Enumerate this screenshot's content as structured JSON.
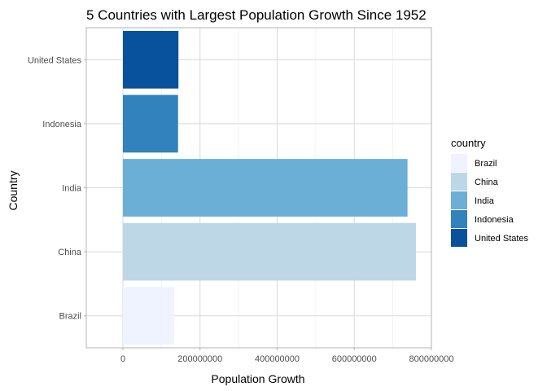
{
  "chart_data": {
    "type": "bar",
    "orientation": "horizontal",
    "title": "5 Countries with Largest Population Growth Since 1952",
    "xlabel": "Population Growth",
    "ylabel": "Country",
    "categories": [
      "Brazil",
      "China",
      "India",
      "Indonesia",
      "United States"
    ],
    "values": [
      133000000,
      760000000,
      738000000,
      143000000,
      144000000
    ],
    "colors": [
      "#EFF3FF",
      "#BDD7E7",
      "#6BAED6",
      "#3182BD",
      "#08519C"
    ],
    "xlim": [
      -95000000,
      800000000
    ],
    "xticks": [
      0,
      200000000,
      400000000,
      600000000,
      800000000
    ],
    "xtick_labels": [
      "0",
      "200000000",
      "400000000",
      "600000000",
      "800000000"
    ],
    "grid": true,
    "legend": {
      "title": "country",
      "position": "right",
      "items": [
        "Brazil",
        "China",
        "India",
        "Indonesia",
        "United States"
      ]
    }
  }
}
